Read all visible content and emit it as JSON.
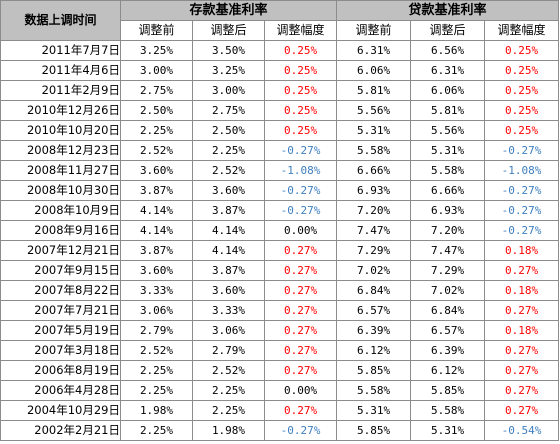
{
  "table": {
    "date_header": "数据上调时间",
    "deposit_header": "存款基准利率",
    "loan_header": "贷款基准利率",
    "sub_headers": [
      "调整前",
      "调整后",
      "调整幅度",
      "调整前",
      "调整后",
      "调整幅度"
    ],
    "colors": {
      "increase": "#ff0000",
      "decrease": "#3d7fc0",
      "no_change": "#000000",
      "header_bg": "#c0c0c0"
    },
    "rows": [
      {
        "date": "2011年7月7日",
        "dep_before": "3.25%",
        "dep_after": "3.50%",
        "dep_change": "0.25%",
        "loan_before": "6.31%",
        "loan_after": "6.56%",
        "loan_change": "0.25%"
      },
      {
        "date": "2011年4月6日",
        "dep_before": "3.00%",
        "dep_after": "3.25%",
        "dep_change": "0.25%",
        "loan_before": "6.06%",
        "loan_after": "6.31%",
        "loan_change": "0.25%"
      },
      {
        "date": "2011年2月9日",
        "dep_before": "2.75%",
        "dep_after": "3.00%",
        "dep_change": "0.25%",
        "loan_before": "5.81%",
        "loan_after": "6.06%",
        "loan_change": "0.25%"
      },
      {
        "date": "2010年12月26日",
        "dep_before": "2.50%",
        "dep_after": "2.75%",
        "dep_change": "0.25%",
        "loan_before": "5.56%",
        "loan_after": "5.81%",
        "loan_change": "0.25%"
      },
      {
        "date": "2010年10月20日",
        "dep_before": "2.25%",
        "dep_after": "2.50%",
        "dep_change": "0.25%",
        "loan_before": "5.31%",
        "loan_after": "5.56%",
        "loan_change": "0.25%"
      },
      {
        "date": "2008年12月23日",
        "dep_before": "2.52%",
        "dep_after": "2.25%",
        "dep_change": "-0.27%",
        "loan_before": "5.58%",
        "loan_after": "5.31%",
        "loan_change": "-0.27%"
      },
      {
        "date": "2008年11月27日",
        "dep_before": "3.60%",
        "dep_after": "2.52%",
        "dep_change": "-1.08%",
        "loan_before": "6.66%",
        "loan_after": "5.58%",
        "loan_change": "-1.08%"
      },
      {
        "date": "2008年10月30日",
        "dep_before": "3.87%",
        "dep_after": "3.60%",
        "dep_change": "-0.27%",
        "loan_before": "6.93%",
        "loan_after": "6.66%",
        "loan_change": "-0.27%"
      },
      {
        "date": "2008年10月9日",
        "dep_before": "4.14%",
        "dep_after": "3.87%",
        "dep_change": "-0.27%",
        "loan_before": "7.20%",
        "loan_after": "6.93%",
        "loan_change": "-0.27%"
      },
      {
        "date": "2008年9月16日",
        "dep_before": "4.14%",
        "dep_after": "4.14%",
        "dep_change": "0.00%",
        "loan_before": "7.47%",
        "loan_after": "7.20%",
        "loan_change": "-0.27%"
      },
      {
        "date": "2007年12月21日",
        "dep_before": "3.87%",
        "dep_after": "4.14%",
        "dep_change": "0.27%",
        "loan_before": "7.29%",
        "loan_after": "7.47%",
        "loan_change": "0.18%"
      },
      {
        "date": "2007年9月15日",
        "dep_before": "3.60%",
        "dep_after": "3.87%",
        "dep_change": "0.27%",
        "loan_before": "7.02%",
        "loan_after": "7.29%",
        "loan_change": "0.27%"
      },
      {
        "date": "2007年8月22日",
        "dep_before": "3.33%",
        "dep_after": "3.60%",
        "dep_change": "0.27%",
        "loan_before": "6.84%",
        "loan_after": "7.02%",
        "loan_change": "0.18%"
      },
      {
        "date": "2007年7月21日",
        "dep_before": "3.06%",
        "dep_after": "3.33%",
        "dep_change": "0.27%",
        "loan_before": "6.57%",
        "loan_after": "6.84%",
        "loan_change": "0.27%"
      },
      {
        "date": "2007年5月19日",
        "dep_before": "2.79%",
        "dep_after": "3.06%",
        "dep_change": "0.27%",
        "loan_before": "6.39%",
        "loan_after": "6.57%",
        "loan_change": "0.18%"
      },
      {
        "date": "2007年3月18日",
        "dep_before": "2.52%",
        "dep_after": "2.79%",
        "dep_change": "0.27%",
        "loan_before": "6.12%",
        "loan_after": "6.39%",
        "loan_change": "0.27%"
      },
      {
        "date": "2006年8月19日",
        "dep_before": "2.25%",
        "dep_after": "2.52%",
        "dep_change": "0.27%",
        "loan_before": "5.85%",
        "loan_after": "6.12%",
        "loan_change": "0.27%"
      },
      {
        "date": "2006年4月28日",
        "dep_before": "2.25%",
        "dep_after": "2.25%",
        "dep_change": "0.00%",
        "loan_before": "5.58%",
        "loan_after": "5.85%",
        "loan_change": "0.27%"
      },
      {
        "date": "2004年10月29日",
        "dep_before": "1.98%",
        "dep_after": "2.25%",
        "dep_change": "0.27%",
        "loan_before": "5.31%",
        "loan_after": "5.58%",
        "loan_change": "0.27%"
      },
      {
        "date": "2002年2月21日",
        "dep_before": "2.25%",
        "dep_after": "1.98%",
        "dep_change": "-0.27%",
        "loan_before": "5.85%",
        "loan_after": "5.31%",
        "loan_change": "-0.54%"
      }
    ]
  }
}
